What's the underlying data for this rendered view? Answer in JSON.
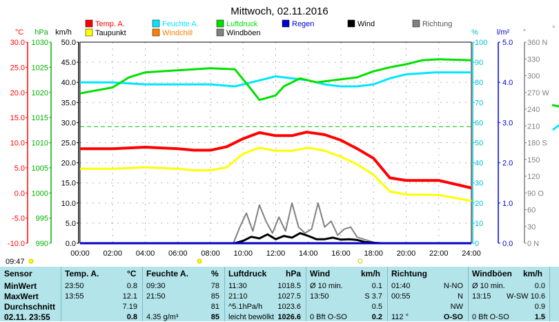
{
  "title": "Mittwoch, 02.11.2016",
  "legend": [
    {
      "label": "Temp. A.",
      "color": "#ff0000",
      "icon": "red-square"
    },
    {
      "label": "Feuchte A.",
      "color": "#00e5ff",
      "icon": "cyan-square"
    },
    {
      "label": "Luftdruck",
      "color": "#00e000",
      "icon": "green-square"
    },
    {
      "label": "Regen",
      "color": "#0000cc",
      "icon": "blue-square"
    },
    {
      "label": "Wind",
      "color": "#000000",
      "icon": "black-square"
    },
    {
      "label": "Richtung",
      "color": "#808080",
      "icon": "gray-square"
    },
    {
      "label": "Taupunkt",
      "color": "#ffff00",
      "icon": "yellow-square"
    },
    {
      "label": "Windchill",
      "color": "#ff8000",
      "icon": "orange-square"
    },
    {
      "label": "Windböen",
      "color": "#808080",
      "icon": "gray-square"
    }
  ],
  "units": {
    "temp": "°C",
    "pressure": "hPa",
    "wind": "km/h",
    "humidity": "%",
    "rain": "l/m²",
    "direction": "°"
  },
  "time_marker": "09:47",
  "chart_data": {
    "type": "line",
    "x": [
      "00:00",
      "02:00",
      "04:00",
      "06:00",
      "08:00",
      "10:00",
      "12:00",
      "14:00",
      "16:00",
      "18:00",
      "20:00",
      "22:00",
      "24:00"
    ],
    "axes": {
      "temp": {
        "ticks": [
          "30.0",
          "25.0",
          "20.0",
          "15.0",
          "10.0",
          "5.0",
          "0.0",
          "-5.0",
          "-10.0"
        ],
        "ylim": [
          -10,
          30
        ]
      },
      "pressure": {
        "ticks": [
          "1030",
          "1025",
          "1020",
          "1015",
          "1010",
          "1005",
          "1000",
          "995",
          "990"
        ],
        "ylim": [
          990,
          1030
        ]
      },
      "wind": {
        "ticks": [
          "50.0",
          "45.0",
          "40.0",
          "35.0",
          "30.0",
          "25.0",
          "20.0",
          "15.0",
          "10.0",
          "5.0",
          "0.0"
        ],
        "ylim": [
          0,
          50
        ]
      },
      "humidity": {
        "ticks": [
          "100",
          "90",
          "80",
          "70",
          "60",
          "50",
          "40",
          "30",
          "20",
          "10",
          "0"
        ],
        "ylim": [
          0,
          100
        ]
      },
      "rain": {
        "ticks": [
          "5.0",
          "4.0",
          "3.0",
          "2.0",
          "1.0",
          "0.0"
        ],
        "ylim": [
          0,
          5
        ]
      },
      "direction": {
        "ticks": [
          "360 N",
          "330",
          "300",
          "270 W",
          "240",
          "210",
          "180 S",
          "150",
          "120",
          "90 O",
          "60",
          "30",
          "0 N"
        ],
        "ylim": [
          0,
          360
        ]
      }
    },
    "series": [
      {
        "name": "Temp. A.",
        "axis": "temp",
        "color": "#ff0000",
        "t": [
          0,
          2,
          4,
          6,
          7,
          8,
          9,
          10,
          11,
          12,
          13,
          13.9,
          15,
          16,
          17,
          18,
          19,
          20,
          22,
          24
        ],
        "v": [
          8.8,
          8.8,
          9.1,
          8.8,
          8.5,
          8.5,
          9.2,
          10.8,
          12.0,
          11.4,
          11.4,
          12.1,
          11.6,
          10.5,
          8.8,
          6.9,
          3.0,
          2.5,
          2.5,
          1.0
        ]
      },
      {
        "name": "Taupunkt",
        "axis": "temp",
        "color": "#ffff00",
        "t": [
          0,
          2,
          4,
          6,
          7,
          8,
          9,
          10,
          11,
          12,
          13,
          14,
          15,
          16,
          17,
          18,
          19,
          20,
          22,
          24
        ],
        "v": [
          4.8,
          4.8,
          5.1,
          4.8,
          4.5,
          4.5,
          5.1,
          7.8,
          9.0,
          8.4,
          8.4,
          9.0,
          8.4,
          7.2,
          5.7,
          3.6,
          0.3,
          -0.3,
          -0.4,
          -1.6
        ]
      },
      {
        "name": "Feuchte A.",
        "axis": "humidity",
        "color": "#00e5ff",
        "t": [
          0,
          2,
          4,
          6,
          8,
          9.5,
          11,
          12,
          13,
          14,
          15,
          16,
          17,
          18,
          19,
          20,
          21.8,
          24
        ],
        "v": [
          80,
          80,
          79,
          79,
          79,
          78,
          81,
          83,
          82,
          81,
          79,
          78,
          78,
          79,
          82,
          84,
          85,
          85
        ]
      },
      {
        "name": "Luftdruck",
        "axis": "pressure",
        "color": "#00e000",
        "t": [
          0,
          1,
          2,
          3,
          4,
          6,
          8,
          9.5,
          10.5,
          11,
          12,
          12.5,
          13.5,
          14.5,
          16,
          17,
          18,
          19,
          20,
          21,
          22,
          24
        ],
        "v": [
          1019.8,
          1020.4,
          1021.0,
          1023.0,
          1024.0,
          1024.4,
          1024.8,
          1024.6,
          1020.6,
          1018.5,
          1019.4,
          1021.2,
          1022.8,
          1022.0,
          1022.6,
          1023.0,
          1024.2,
          1025.0,
          1025.6,
          1026.4,
          1026.6,
          1026.4
        ]
      },
      {
        "name": "Wind",
        "axis": "wind",
        "color": "#000000",
        "t": [
          0,
          9.5,
          10,
          10.5,
          11,
          11.5,
          12,
          12.5,
          13,
          13.5,
          14,
          14.5,
          15,
          15.5,
          16,
          16.5,
          17,
          17.5,
          18,
          18.5,
          24
        ],
        "v": [
          0,
          0,
          0.6,
          1.6,
          1.2,
          2.2,
          1.0,
          1.8,
          1.4,
          2.5,
          1.8,
          1.0,
          1.0,
          1.4,
          0.9,
          1.0,
          0.8,
          0.3,
          0.1,
          0,
          0
        ]
      },
      {
        "name": "Windböen",
        "axis": "wind",
        "color": "#808080",
        "t": [
          0,
          9.4,
          9.8,
          10.2,
          10.6,
          11.0,
          11.4,
          11.8,
          12.2,
          12.6,
          13.0,
          13.4,
          13.8,
          14.2,
          14.6,
          15.0,
          15.4,
          15.8,
          16.2,
          16.6,
          17.0,
          17.4,
          17.8,
          18.2,
          24
        ],
        "v": [
          0,
          0,
          4.0,
          7.5,
          3.0,
          9.5,
          5.5,
          2.5,
          6.5,
          3.0,
          10.0,
          4.0,
          2.5,
          3.5,
          10.0,
          4.0,
          5.5,
          2.0,
          3.5,
          4.0,
          1.5,
          1.0,
          0.5,
          0,
          0
        ]
      },
      {
        "name": "Regen",
        "axis": "rain",
        "color": "#0000cc",
        "t": [
          0,
          24
        ],
        "v": [
          0,
          0
        ]
      }
    ]
  },
  "stats": {
    "headers": [
      "Sensor",
      "Temp. A.",
      "°C",
      "Feuchte A.",
      "%",
      "Luftdruck",
      "hPa",
      "Wind",
      "km/h",
      "Richtung",
      "Windböen",
      "km/h"
    ],
    "rows": [
      {
        "label": "MinWert",
        "temp_time": "23:50",
        "temp": "0.8",
        "hum_time": "09:30",
        "hum": "78",
        "press_time": "11:30",
        "press": "1018.5",
        "wind_desc": "Ø 10 min.",
        "wind": "0.1",
        "dir_time": "01:40",
        "dir": "N-NO",
        "gust_desc": "Ø 10 min.",
        "gust": "0.0"
      },
      {
        "label": "MaxWert",
        "temp_time": "13:55",
        "temp": "12.1",
        "hum_time": "21:50",
        "hum": "85",
        "press_time": "21:10",
        "press": "1027.5",
        "wind_desc": "13:50",
        "wind": "S 3.7",
        "dir_time": "00:55",
        "dir": "N",
        "gust_desc": "13:15",
        "gust": "W-SW 10.6"
      },
      {
        "label": "Durchschnitt",
        "temp_time": "",
        "temp": "7.19",
        "hum_time": "",
        "hum": "81",
        "press_time": "^5.1hPa/h",
        "press": "1023.6",
        "wind_desc": "",
        "wind": "0.5",
        "dir_time": "",
        "dir": "NW",
        "gust_desc": "",
        "gust": "0.9"
      },
      {
        "label": "02.11. 23:55",
        "temp_time": "",
        "temp": "0.8",
        "hum_time": "4.35 g/m³",
        "hum": "85",
        "press_time": "leicht bewölkt",
        "press": "1026.6",
        "wind_desc": "0 Bft O-SO",
        "wind": "0.2",
        "dir_time": "112 °",
        "dir": "O-SO",
        "gust_desc": "0 Bft O-SO",
        "gust": "1.5"
      }
    ]
  }
}
